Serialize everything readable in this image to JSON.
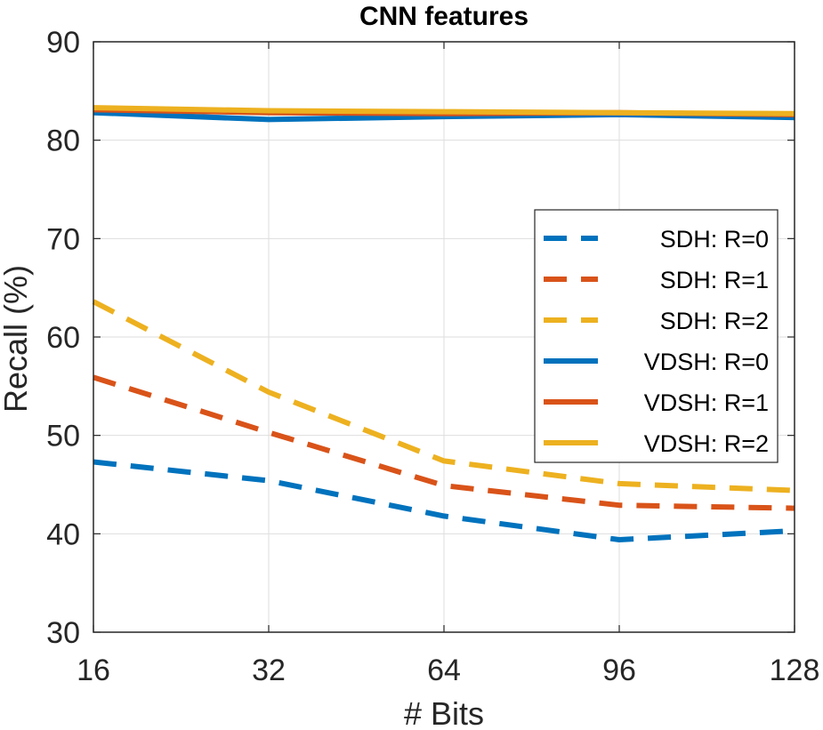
{
  "chart_data": {
    "type": "line",
    "title": "CNN features",
    "xlabel": "# Bits",
    "ylabel": "Recall (%)",
    "categories": [
      "16",
      "32",
      "64",
      "96",
      "128"
    ],
    "ylim": [
      30,
      90
    ],
    "yticks": [
      "30",
      "40",
      "50",
      "60",
      "70",
      "80",
      "90"
    ],
    "grid": true,
    "legend_position": "right",
    "series": [
      {
        "name": "SDH: R=0",
        "style": "dashed",
        "color": "#0072BD",
        "values": [
          47.3,
          45.4,
          41.8,
          39.4,
          40.3
        ]
      },
      {
        "name": "SDH: R=1",
        "style": "dashed",
        "color": "#D95319",
        "values": [
          55.9,
          50.3,
          44.9,
          42.9,
          42.6
        ]
      },
      {
        "name": "SDH: R=2",
        "style": "dashed",
        "color": "#EDB120",
        "values": [
          63.6,
          54.4,
          47.4,
          45.1,
          44.4
        ]
      },
      {
        "name": "VDSH: R=0",
        "style": "solid",
        "color": "#0072BD",
        "values": [
          82.8,
          82.1,
          82.4,
          82.6,
          82.3
        ]
      },
      {
        "name": "VDSH: R=1",
        "style": "solid",
        "color": "#D95319",
        "values": [
          83.1,
          82.8,
          82.7,
          82.8,
          82.6
        ]
      },
      {
        "name": "VDSH: R=2",
        "style": "solid",
        "color": "#EDB120",
        "values": [
          83.3,
          83.0,
          82.9,
          82.8,
          82.7
        ]
      }
    ]
  }
}
